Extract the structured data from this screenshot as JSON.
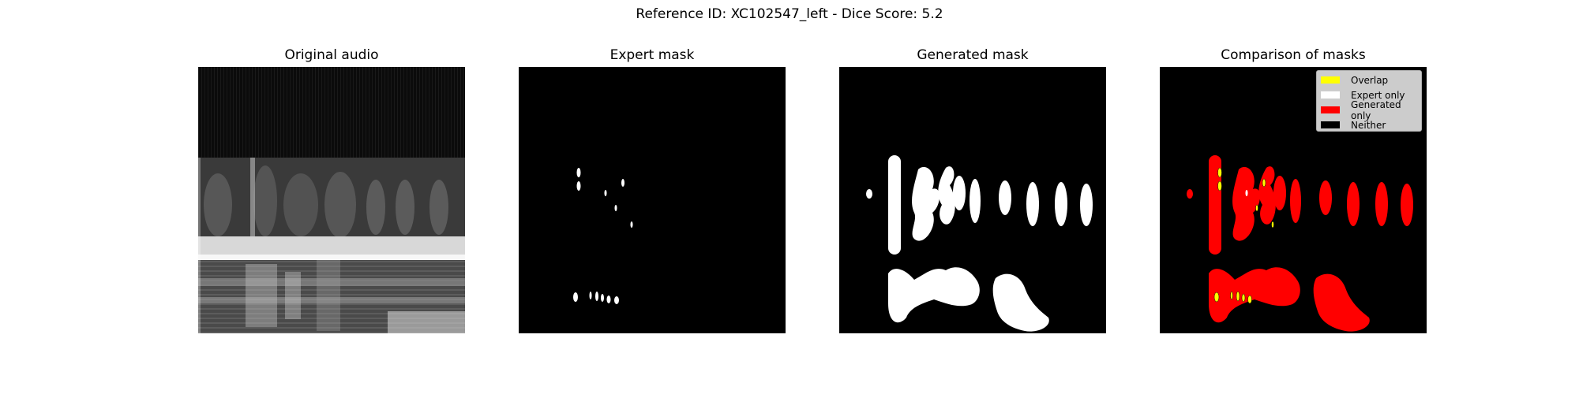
{
  "figure": {
    "suptitle": "Reference ID: XC102547_left - Dice Score: 5.2"
  },
  "panels": [
    {
      "title": "Original audio"
    },
    {
      "title": "Expert mask"
    },
    {
      "title": "Generated mask"
    },
    {
      "title": "Comparison of masks"
    }
  ],
  "legend": {
    "items": [
      {
        "label": "Overlap",
        "color": "#ffff00"
      },
      {
        "label": "Expert only",
        "color": "#ffffff"
      },
      {
        "label": "Generated only",
        "color": "#ff0000"
      },
      {
        "label": "Neither",
        "color": "#000000"
      }
    ]
  },
  "colors": {
    "overlap": "#ffff00",
    "expert_only": "#ffffff",
    "generated_only": "#ff0000",
    "neither": "#000000"
  }
}
